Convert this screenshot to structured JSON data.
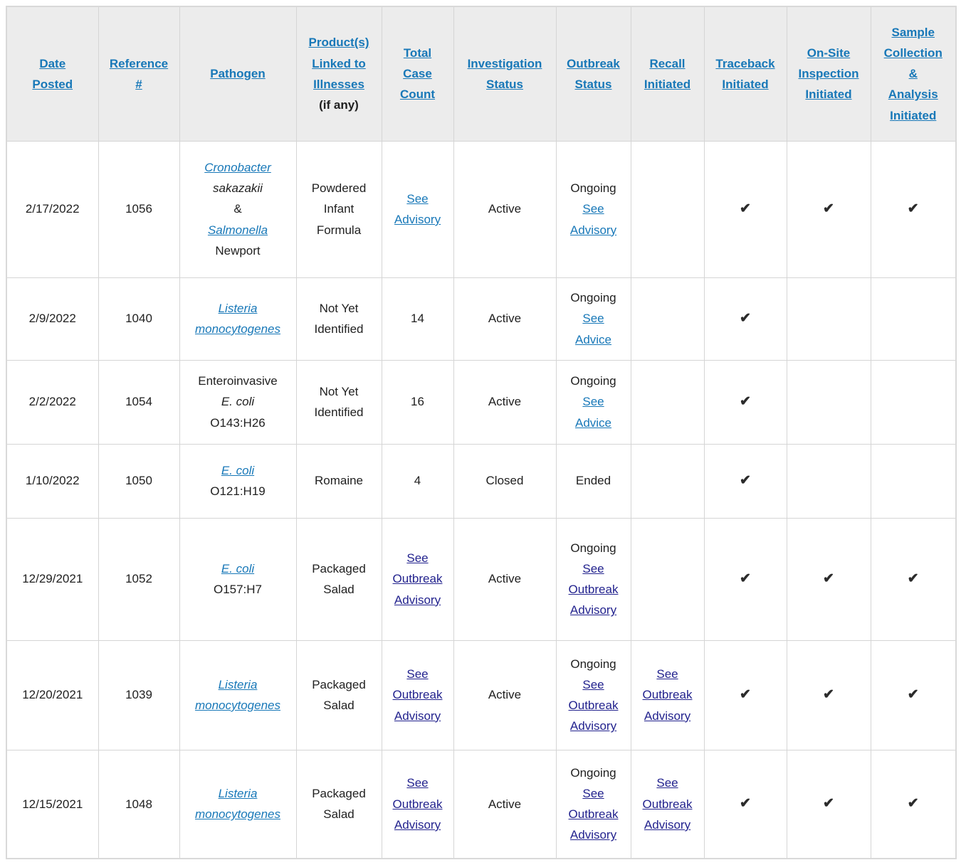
{
  "check_glyph": "✔",
  "colors": {
    "link": "#1878b8",
    "visited_link": "#23238e",
    "text": "#212121",
    "check": "#2b2b2b",
    "header_bg": "#ececec",
    "border": "#d5d5d5"
  },
  "columns": [
    {
      "key": "date-posted",
      "header": [
        "Date",
        "Posted"
      ]
    },
    {
      "key": "reference",
      "header": [
        "Reference",
        "#"
      ]
    },
    {
      "key": "pathogen",
      "header": [
        "Pathogen"
      ]
    },
    {
      "key": "products",
      "header": [
        "Product(s)",
        "Linked to",
        "Illnesses"
      ],
      "header_suffix": "(if any)"
    },
    {
      "key": "case-count",
      "header": [
        "Total",
        "Case",
        "Count"
      ]
    },
    {
      "key": "investigation-status",
      "header": [
        "Investigation",
        "Status"
      ]
    },
    {
      "key": "outbreak-status",
      "header": [
        "Outbreak",
        "Status"
      ]
    },
    {
      "key": "recall",
      "header": [
        "Recall",
        "Initiated"
      ]
    },
    {
      "key": "traceback",
      "header": [
        "Traceback",
        "Initiated"
      ]
    },
    {
      "key": "on-site-inspection",
      "header": [
        "On-Site",
        "Inspection",
        "Initiated"
      ]
    },
    {
      "key": "sample-collection",
      "header": [
        "Sample",
        "Collection",
        "&",
        "Analysis",
        "Initiated"
      ]
    }
  ],
  "rows": [
    {
      "cells": [
        {
          "lines": [
            [
              {
                "t": "2/17/2022"
              }
            ]
          ]
        },
        {
          "lines": [
            [
              {
                "t": "1056"
              }
            ]
          ]
        },
        {
          "lines": [
            [
              {
                "t": "Cronobacter",
                "k": "link",
                "i": true
              }
            ],
            [
              {
                "t": "sakazakii",
                "i": true
              }
            ],
            [
              {
                "t": "&"
              }
            ],
            [
              {
                "t": "Salmonella",
                "k": "link",
                "i": true
              }
            ],
            [
              {
                "t": "Newport"
              }
            ]
          ]
        },
        {
          "lines": [
            [
              {
                "t": "Powdered"
              }
            ],
            [
              {
                "t": "Infant"
              }
            ],
            [
              {
                "t": "Formula"
              }
            ]
          ]
        },
        {
          "lines": [
            [
              {
                "t": "See",
                "k": "link"
              }
            ],
            [
              {
                "t": "Advisory",
                "k": "link"
              }
            ]
          ]
        },
        {
          "lines": [
            [
              {
                "t": "Active"
              }
            ]
          ]
        },
        {
          "lines": [
            [
              {
                "t": "Ongoing"
              }
            ],
            [
              {
                "t": "See",
                "k": "link"
              }
            ],
            [
              {
                "t": "Advisory",
                "k": "link"
              }
            ]
          ]
        },
        {
          "lines": []
        },
        {
          "check": true
        },
        {
          "check": true
        },
        {
          "check": true
        }
      ]
    },
    {
      "cells": [
        {
          "lines": [
            [
              {
                "t": "2/9/2022"
              }
            ]
          ]
        },
        {
          "lines": [
            [
              {
                "t": "1040"
              }
            ]
          ]
        },
        {
          "lines": [
            [
              {
                "t": "Listeria",
                "k": "link",
                "i": true
              }
            ],
            [
              {
                "t": "monocytogenes",
                "k": "link",
                "i": true
              }
            ]
          ]
        },
        {
          "lines": [
            [
              {
                "t": "Not Yet"
              }
            ],
            [
              {
                "t": "Identified"
              }
            ]
          ]
        },
        {
          "lines": [
            [
              {
                "t": "14"
              }
            ]
          ]
        },
        {
          "lines": [
            [
              {
                "t": "Active"
              }
            ]
          ]
        },
        {
          "lines": [
            [
              {
                "t": "Ongoing"
              }
            ],
            [
              {
                "t": "See",
                "k": "link"
              }
            ],
            [
              {
                "t": "Advice",
                "k": "link"
              }
            ]
          ]
        },
        {
          "lines": []
        },
        {
          "check": true
        },
        {
          "lines": []
        },
        {
          "lines": []
        }
      ]
    },
    {
      "cells": [
        {
          "lines": [
            [
              {
                "t": "2/2/2022"
              }
            ]
          ]
        },
        {
          "lines": [
            [
              {
                "t": "1054"
              }
            ]
          ]
        },
        {
          "lines": [
            [
              {
                "t": "Enteroinvasive"
              }
            ],
            [
              {
                "t": "E. coli",
                "i": true
              }
            ],
            [
              {
                "t": "O143:H26"
              }
            ]
          ]
        },
        {
          "lines": [
            [
              {
                "t": "Not Yet"
              }
            ],
            [
              {
                "t": "Identified"
              }
            ]
          ]
        },
        {
          "lines": [
            [
              {
                "t": "16"
              }
            ]
          ]
        },
        {
          "lines": [
            [
              {
                "t": "Active"
              }
            ]
          ]
        },
        {
          "lines": [
            [
              {
                "t": "Ongoing"
              }
            ],
            [
              {
                "t": "See",
                "k": "link"
              }
            ],
            [
              {
                "t": "Advice",
                "k": "link"
              }
            ]
          ]
        },
        {
          "lines": []
        },
        {
          "check": true
        },
        {
          "lines": []
        },
        {
          "lines": []
        }
      ]
    },
    {
      "cells": [
        {
          "lines": [
            [
              {
                "t": "1/10/2022"
              }
            ]
          ]
        },
        {
          "lines": [
            [
              {
                "t": "1050"
              }
            ]
          ]
        },
        {
          "lines": [
            [
              {
                "t": "E. coli",
                "k": "link",
                "i": true
              }
            ],
            [
              {
                "t": "O121:H19"
              }
            ]
          ]
        },
        {
          "lines": [
            [
              {
                "t": "Romaine"
              }
            ]
          ]
        },
        {
          "lines": [
            [
              {
                "t": "4"
              }
            ]
          ]
        },
        {
          "lines": [
            [
              {
                "t": "Closed"
              }
            ]
          ]
        },
        {
          "lines": [
            [
              {
                "t": "Ended"
              }
            ]
          ]
        },
        {
          "lines": []
        },
        {
          "check": true
        },
        {
          "lines": []
        },
        {
          "lines": []
        }
      ]
    },
    {
      "cells": [
        {
          "lines": [
            [
              {
                "t": "12/29/2021"
              }
            ]
          ]
        },
        {
          "lines": [
            [
              {
                "t": "1052"
              }
            ]
          ]
        },
        {
          "lines": [
            [
              {
                "t": "E. coli",
                "k": "link",
                "i": true
              }
            ],
            [
              {
                "t": "O157:H7"
              }
            ]
          ]
        },
        {
          "lines": [
            [
              {
                "t": "Packaged"
              }
            ],
            [
              {
                "t": "Salad"
              }
            ]
          ]
        },
        {
          "lines": [
            [
              {
                "t": "See",
                "k": "vlink"
              }
            ],
            [
              {
                "t": "Outbreak",
                "k": "vlink"
              }
            ],
            [
              {
                "t": "Advisory",
                "k": "vlink"
              }
            ]
          ]
        },
        {
          "lines": [
            [
              {
                "t": "Active"
              }
            ]
          ]
        },
        {
          "lines": [
            [
              {
                "t": "Ongoing"
              }
            ],
            [
              {
                "t": "See",
                "k": "vlink"
              }
            ],
            [
              {
                "t": "Outbreak",
                "k": "vlink"
              }
            ],
            [
              {
                "t": "Advisory",
                "k": "vlink"
              }
            ]
          ]
        },
        {
          "lines": []
        },
        {
          "check": true
        },
        {
          "check": true
        },
        {
          "check": true
        }
      ]
    },
    {
      "cells": [
        {
          "lines": [
            [
              {
                "t": "12/20/2021"
              }
            ]
          ]
        },
        {
          "lines": [
            [
              {
                "t": "1039"
              }
            ]
          ]
        },
        {
          "lines": [
            [
              {
                "t": "Listeria",
                "k": "link",
                "i": true
              }
            ],
            [
              {
                "t": "monocytogenes",
                "k": "link",
                "i": true
              }
            ]
          ]
        },
        {
          "lines": [
            [
              {
                "t": "Packaged"
              }
            ],
            [
              {
                "t": "Salad"
              }
            ]
          ]
        },
        {
          "lines": [
            [
              {
                "t": "See",
                "k": "vlink"
              }
            ],
            [
              {
                "t": "Outbreak",
                "k": "vlink"
              }
            ],
            [
              {
                "t": "Advisory",
                "k": "vlink"
              }
            ]
          ]
        },
        {
          "lines": [
            [
              {
                "t": "Active"
              }
            ]
          ]
        },
        {
          "lines": [
            [
              {
                "t": "Ongoing"
              }
            ],
            [
              {
                "t": "See",
                "k": "vlink"
              }
            ],
            [
              {
                "t": "Outbreak",
                "k": "vlink"
              }
            ],
            [
              {
                "t": "Advisory",
                "k": "vlink"
              }
            ]
          ]
        },
        {
          "lines": [
            [
              {
                "t": "See",
                "k": "vlink"
              }
            ],
            [
              {
                "t": "Outbreak",
                "k": "vlink"
              }
            ],
            [
              {
                "t": "Advisory",
                "k": "vlink"
              }
            ]
          ]
        },
        {
          "check": true
        },
        {
          "check": true
        },
        {
          "check": true
        }
      ]
    },
    {
      "cells": [
        {
          "lines": [
            [
              {
                "t": "12/15/2021"
              }
            ]
          ]
        },
        {
          "lines": [
            [
              {
                "t": "1048"
              }
            ]
          ]
        },
        {
          "lines": [
            [
              {
                "t": "Listeria",
                "k": "link",
                "i": true
              }
            ],
            [
              {
                "t": "monocytogenes",
                "k": "link",
                "i": true
              }
            ]
          ]
        },
        {
          "lines": [
            [
              {
                "t": "Packaged"
              }
            ],
            [
              {
                "t": "Salad"
              }
            ]
          ]
        },
        {
          "lines": [
            [
              {
                "t": "See",
                "k": "vlink"
              }
            ],
            [
              {
                "t": "Outbreak",
                "k": "vlink"
              }
            ],
            [
              {
                "t": "Advisory",
                "k": "vlink"
              }
            ]
          ]
        },
        {
          "lines": [
            [
              {
                "t": "Active"
              }
            ]
          ]
        },
        {
          "lines": [
            [
              {
                "t": "Ongoing"
              }
            ],
            [
              {
                "t": "See",
                "k": "vlink"
              }
            ],
            [
              {
                "t": "Outbreak",
                "k": "vlink"
              }
            ],
            [
              {
                "t": "Advisory",
                "k": "vlink"
              }
            ]
          ]
        },
        {
          "lines": [
            [
              {
                "t": "See",
                "k": "vlink"
              }
            ],
            [
              {
                "t": "Outbreak",
                "k": "vlink"
              }
            ],
            [
              {
                "t": "Advisory",
                "k": "vlink"
              }
            ]
          ]
        },
        {
          "check": true
        },
        {
          "check": true
        },
        {
          "check": true
        }
      ]
    }
  ]
}
